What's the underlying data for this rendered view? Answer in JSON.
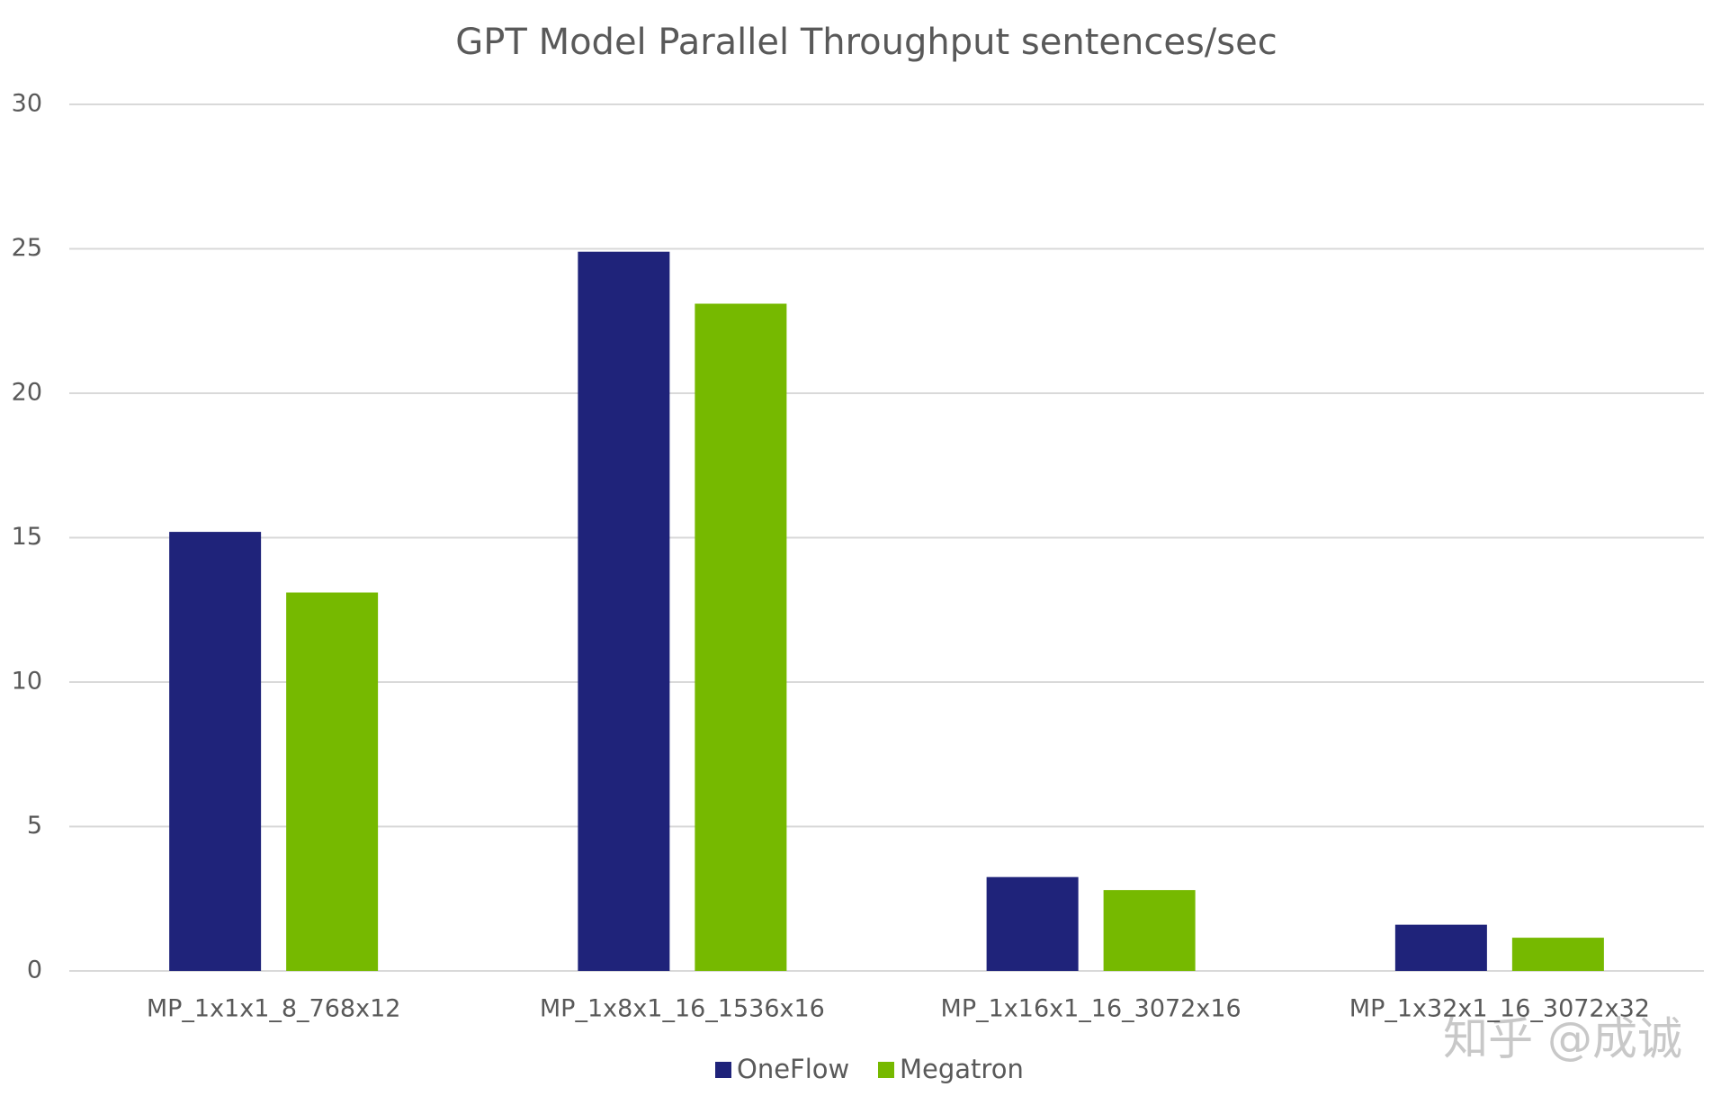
{
  "chart_data": {
    "type": "bar",
    "title": "GPT Model Parallel Throughput sentences/sec",
    "categories": [
      "MP_1x1x1_8_768x12",
      "MP_1x8x1_16_1536x16",
      "MP_1x16x1_16_3072x16",
      "MP_1x32x1_16_3072x32"
    ],
    "series": [
      {
        "name": "OneFlow",
        "color": "#1f237a",
        "values": [
          15.2,
          24.9,
          3.25,
          1.6
        ]
      },
      {
        "name": "Megatron",
        "color": "#76b900",
        "values": [
          13.1,
          23.1,
          2.8,
          1.15
        ]
      }
    ],
    "ylim": [
      0,
      30
    ],
    "yticks": [
      0,
      5,
      10,
      15,
      20,
      25,
      30
    ],
    "grid": true,
    "legend": "bottom",
    "watermark": "知乎 @成诚"
  }
}
